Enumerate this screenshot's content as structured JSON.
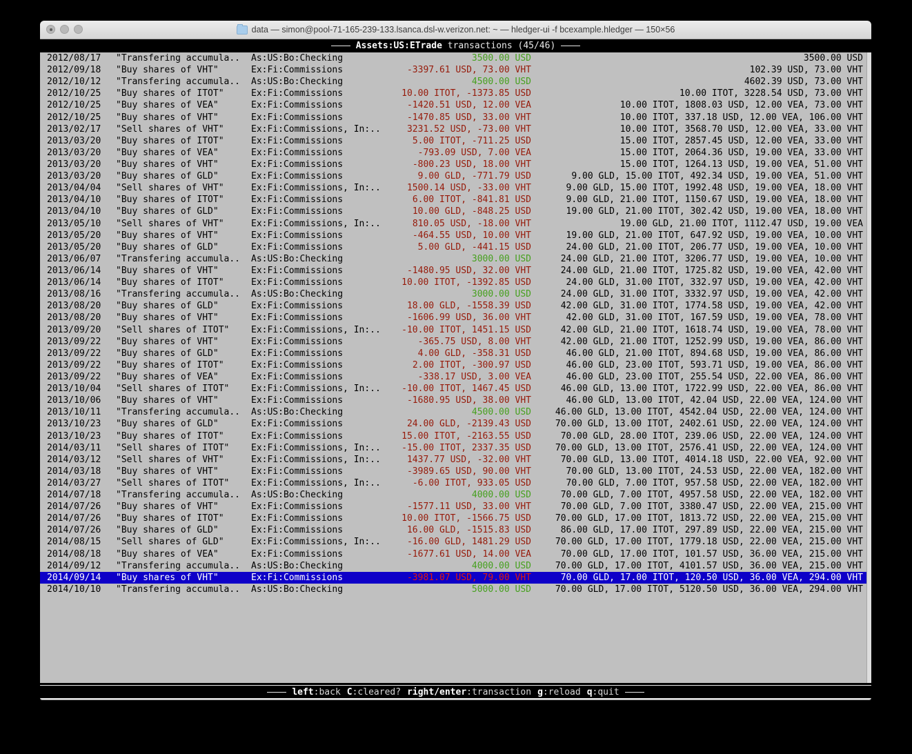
{
  "window": {
    "title": "data — simon@pool-71-165-239-133.lsanca.dsl-w.verizon.net: ~ — hledger-ui -f bcexample.hledger — 150×56"
  },
  "header": {
    "account": "Assets:US:ETrade",
    "rest": " transactions (45/46)"
  },
  "footer": {
    "hints": [
      {
        "key": "left",
        "desc": ":back"
      },
      {
        "key": "C",
        "desc": ":cleared?"
      },
      {
        "key": "right/enter",
        "desc": ":transaction"
      },
      {
        "key": "g",
        "desc": ":reload"
      },
      {
        "key": "q",
        "desc": ":quit"
      }
    ]
  },
  "colors": {
    "red": "#961a0a",
    "green": "#46a01e",
    "selection": "#0e00c8",
    "selection_red": "#e3170a",
    "terminal_bg": "#c0c0c0",
    "bar_bg": "#000000"
  },
  "transactions": [
    {
      "date": "2012/08/17",
      "description": "\"Transfering accumula..",
      "accounts": "As:US:Bo:Checking",
      "amount": "3500.00 USD",
      "amount_color": "green",
      "balance": "3500.00 USD",
      "selected": false
    },
    {
      "date": "2012/09/18",
      "description": "\"Buy shares of VHT\"",
      "accounts": "Ex:Fi:Commissions",
      "amount": "-3397.61 USD, 73.00 VHT",
      "amount_color": "red",
      "balance": "102.39 USD, 73.00 VHT",
      "selected": false
    },
    {
      "date": "2012/10/12",
      "description": "\"Transfering accumula..",
      "accounts": "As:US:Bo:Checking",
      "amount": "4500.00 USD",
      "amount_color": "green",
      "balance": "4602.39 USD, 73.00 VHT",
      "selected": false
    },
    {
      "date": "2012/10/25",
      "description": "\"Buy shares of ITOT\"",
      "accounts": "Ex:Fi:Commissions",
      "amount": "10.00 ITOT, -1373.85 USD",
      "amount_color": "red",
      "balance": "10.00 ITOT, 3228.54 USD, 73.00 VHT",
      "selected": false
    },
    {
      "date": "2012/10/25",
      "description": "\"Buy shares of VEA\"",
      "accounts": "Ex:Fi:Commissions",
      "amount": "-1420.51 USD, 12.00 VEA",
      "amount_color": "red",
      "balance": "10.00 ITOT, 1808.03 USD, 12.00 VEA, 73.00 VHT",
      "selected": false
    },
    {
      "date": "2012/10/25",
      "description": "\"Buy shares of VHT\"",
      "accounts": "Ex:Fi:Commissions",
      "amount": "-1470.85 USD, 33.00 VHT",
      "amount_color": "red",
      "balance": "10.00 ITOT, 337.18 USD, 12.00 VEA, 106.00 VHT",
      "selected": false
    },
    {
      "date": "2013/02/17",
      "description": "\"Sell shares of VHT\"",
      "accounts": "Ex:Fi:Commissions, In:..",
      "amount": "3231.52 USD, -73.00 VHT",
      "amount_color": "red",
      "balance": "10.00 ITOT, 3568.70 USD, 12.00 VEA, 33.00 VHT",
      "selected": false
    },
    {
      "date": "2013/03/20",
      "description": "\"Buy shares of ITOT\"",
      "accounts": "Ex:Fi:Commissions",
      "amount": "5.00 ITOT, -711.25 USD",
      "amount_color": "red",
      "balance": "15.00 ITOT, 2857.45 USD, 12.00 VEA, 33.00 VHT",
      "selected": false
    },
    {
      "date": "2013/03/20",
      "description": "\"Buy shares of VEA\"",
      "accounts": "Ex:Fi:Commissions",
      "amount": "-793.09 USD, 7.00 VEA",
      "amount_color": "red",
      "balance": "15.00 ITOT, 2064.36 USD, 19.00 VEA, 33.00 VHT",
      "selected": false
    },
    {
      "date": "2013/03/20",
      "description": "\"Buy shares of VHT\"",
      "accounts": "Ex:Fi:Commissions",
      "amount": "-800.23 USD, 18.00 VHT",
      "amount_color": "red",
      "balance": "15.00 ITOT, 1264.13 USD, 19.00 VEA, 51.00 VHT",
      "selected": false
    },
    {
      "date": "2013/03/20",
      "description": "\"Buy shares of GLD\"",
      "accounts": "Ex:Fi:Commissions",
      "amount": "9.00 GLD, -771.79 USD",
      "amount_color": "red",
      "balance": "9.00 GLD, 15.00 ITOT, 492.34 USD, 19.00 VEA, 51.00 VHT",
      "selected": false
    },
    {
      "date": "2013/04/04",
      "description": "\"Sell shares of VHT\"",
      "accounts": "Ex:Fi:Commissions, In:..",
      "amount": "1500.14 USD, -33.00 VHT",
      "amount_color": "red",
      "balance": "9.00 GLD, 15.00 ITOT, 1992.48 USD, 19.00 VEA, 18.00 VHT",
      "selected": false
    },
    {
      "date": "2013/04/10",
      "description": "\"Buy shares of ITOT\"",
      "accounts": "Ex:Fi:Commissions",
      "amount": "6.00 ITOT, -841.81 USD",
      "amount_color": "red",
      "balance": "9.00 GLD, 21.00 ITOT, 1150.67 USD, 19.00 VEA, 18.00 VHT",
      "selected": false
    },
    {
      "date": "2013/04/10",
      "description": "\"Buy shares of GLD\"",
      "accounts": "Ex:Fi:Commissions",
      "amount": "10.00 GLD, -848.25 USD",
      "amount_color": "red",
      "balance": "19.00 GLD, 21.00 ITOT, 302.42 USD, 19.00 VEA, 18.00 VHT",
      "selected": false
    },
    {
      "date": "2013/05/10",
      "description": "\"Sell shares of VHT\"",
      "accounts": "Ex:Fi:Commissions, In:..",
      "amount": "810.05 USD, -18.00 VHT",
      "amount_color": "red",
      "balance": "19.00 GLD, 21.00 ITOT, 1112.47 USD, 19.00 VEA",
      "selected": false
    },
    {
      "date": "2013/05/20",
      "description": "\"Buy shares of VHT\"",
      "accounts": "Ex:Fi:Commissions",
      "amount": "-464.55 USD, 10.00 VHT",
      "amount_color": "red",
      "balance": "19.00 GLD, 21.00 ITOT, 647.92 USD, 19.00 VEA, 10.00 VHT",
      "selected": false
    },
    {
      "date": "2013/05/20",
      "description": "\"Buy shares of GLD\"",
      "accounts": "Ex:Fi:Commissions",
      "amount": "5.00 GLD, -441.15 USD",
      "amount_color": "red",
      "balance": "24.00 GLD, 21.00 ITOT, 206.77 USD, 19.00 VEA, 10.00 VHT",
      "selected": false
    },
    {
      "date": "2013/06/07",
      "description": "\"Transfering accumula..",
      "accounts": "As:US:Bo:Checking",
      "amount": "3000.00 USD",
      "amount_color": "green",
      "balance": "24.00 GLD, 21.00 ITOT, 3206.77 USD, 19.00 VEA, 10.00 VHT",
      "selected": false
    },
    {
      "date": "2013/06/14",
      "description": "\"Buy shares of VHT\"",
      "accounts": "Ex:Fi:Commissions",
      "amount": "-1480.95 USD, 32.00 VHT",
      "amount_color": "red",
      "balance": "24.00 GLD, 21.00 ITOT, 1725.82 USD, 19.00 VEA, 42.00 VHT",
      "selected": false
    },
    {
      "date": "2013/06/14",
      "description": "\"Buy shares of ITOT\"",
      "accounts": "Ex:Fi:Commissions",
      "amount": "10.00 ITOT, -1392.85 USD",
      "amount_color": "red",
      "balance": "24.00 GLD, 31.00 ITOT, 332.97 USD, 19.00 VEA, 42.00 VHT",
      "selected": false
    },
    {
      "date": "2013/08/16",
      "description": "\"Transfering accumula..",
      "accounts": "As:US:Bo:Checking",
      "amount": "3000.00 USD",
      "amount_color": "green",
      "balance": "24.00 GLD, 31.00 ITOT, 3332.97 USD, 19.00 VEA, 42.00 VHT",
      "selected": false
    },
    {
      "date": "2013/08/20",
      "description": "\"Buy shares of GLD\"",
      "accounts": "Ex:Fi:Commissions",
      "amount": "18.00 GLD, -1558.39 USD",
      "amount_color": "red",
      "balance": "42.00 GLD, 31.00 ITOT, 1774.58 USD, 19.00 VEA, 42.00 VHT",
      "selected": false
    },
    {
      "date": "2013/08/20",
      "description": "\"Buy shares of VHT\"",
      "accounts": "Ex:Fi:Commissions",
      "amount": "-1606.99 USD, 36.00 VHT",
      "amount_color": "red",
      "balance": "42.00 GLD, 31.00 ITOT, 167.59 USD, 19.00 VEA, 78.00 VHT",
      "selected": false
    },
    {
      "date": "2013/09/20",
      "description": "\"Sell shares of ITOT\"",
      "accounts": "Ex:Fi:Commissions, In:..",
      "amount": "-10.00 ITOT, 1451.15 USD",
      "amount_color": "red",
      "balance": "42.00 GLD, 21.00 ITOT, 1618.74 USD, 19.00 VEA, 78.00 VHT",
      "selected": false
    },
    {
      "date": "2013/09/22",
      "description": "\"Buy shares of VHT\"",
      "accounts": "Ex:Fi:Commissions",
      "amount": "-365.75 USD, 8.00 VHT",
      "amount_color": "red",
      "balance": "42.00 GLD, 21.00 ITOT, 1252.99 USD, 19.00 VEA, 86.00 VHT",
      "selected": false
    },
    {
      "date": "2013/09/22",
      "description": "\"Buy shares of GLD\"",
      "accounts": "Ex:Fi:Commissions",
      "amount": "4.00 GLD, -358.31 USD",
      "amount_color": "red",
      "balance": "46.00 GLD, 21.00 ITOT, 894.68 USD, 19.00 VEA, 86.00 VHT",
      "selected": false
    },
    {
      "date": "2013/09/22",
      "description": "\"Buy shares of ITOT\"",
      "accounts": "Ex:Fi:Commissions",
      "amount": "2.00 ITOT, -300.97 USD",
      "amount_color": "red",
      "balance": "46.00 GLD, 23.00 ITOT, 593.71 USD, 19.00 VEA, 86.00 VHT",
      "selected": false
    },
    {
      "date": "2013/09/22",
      "description": "\"Buy shares of VEA\"",
      "accounts": "Ex:Fi:Commissions",
      "amount": "-338.17 USD, 3.00 VEA",
      "amount_color": "red",
      "balance": "46.00 GLD, 23.00 ITOT, 255.54 USD, 22.00 VEA, 86.00 VHT",
      "selected": false
    },
    {
      "date": "2013/10/04",
      "description": "\"Sell shares of ITOT\"",
      "accounts": "Ex:Fi:Commissions, In:..",
      "amount": "-10.00 ITOT, 1467.45 USD",
      "amount_color": "red",
      "balance": "46.00 GLD, 13.00 ITOT, 1722.99 USD, 22.00 VEA, 86.00 VHT",
      "selected": false
    },
    {
      "date": "2013/10/06",
      "description": "\"Buy shares of VHT\"",
      "accounts": "Ex:Fi:Commissions",
      "amount": "-1680.95 USD, 38.00 VHT",
      "amount_color": "red",
      "balance": "46.00 GLD, 13.00 ITOT, 42.04 USD, 22.00 VEA, 124.00 VHT",
      "selected": false
    },
    {
      "date": "2013/10/11",
      "description": "\"Transfering accumula..",
      "accounts": "As:US:Bo:Checking",
      "amount": "4500.00 USD",
      "amount_color": "green",
      "balance": "46.00 GLD, 13.00 ITOT, 4542.04 USD, 22.00 VEA, 124.00 VHT",
      "selected": false
    },
    {
      "date": "2013/10/23",
      "description": "\"Buy shares of GLD\"",
      "accounts": "Ex:Fi:Commissions",
      "amount": "24.00 GLD, -2139.43 USD",
      "amount_color": "red",
      "balance": "70.00 GLD, 13.00 ITOT, 2402.61 USD, 22.00 VEA, 124.00 VHT",
      "selected": false
    },
    {
      "date": "2013/10/23",
      "description": "\"Buy shares of ITOT\"",
      "accounts": "Ex:Fi:Commissions",
      "amount": "15.00 ITOT, -2163.55 USD",
      "amount_color": "red",
      "balance": "70.00 GLD, 28.00 ITOT, 239.06 USD, 22.00 VEA, 124.00 VHT",
      "selected": false
    },
    {
      "date": "2014/03/11",
      "description": "\"Sell shares of ITOT\"",
      "accounts": "Ex:Fi:Commissions, In:..",
      "amount": "-15.00 ITOT, 2337.35 USD",
      "amount_color": "red",
      "balance": "70.00 GLD, 13.00 ITOT, 2576.41 USD, 22.00 VEA, 124.00 VHT",
      "selected": false
    },
    {
      "date": "2014/03/12",
      "description": "\"Sell shares of VHT\"",
      "accounts": "Ex:Fi:Commissions, In:..",
      "amount": "1437.77 USD, -32.00 VHT",
      "amount_color": "red",
      "balance": "70.00 GLD, 13.00 ITOT, 4014.18 USD, 22.00 VEA, 92.00 VHT",
      "selected": false
    },
    {
      "date": "2014/03/18",
      "description": "\"Buy shares of VHT\"",
      "accounts": "Ex:Fi:Commissions",
      "amount": "-3989.65 USD, 90.00 VHT",
      "amount_color": "red",
      "balance": "70.00 GLD, 13.00 ITOT, 24.53 USD, 22.00 VEA, 182.00 VHT",
      "selected": false
    },
    {
      "date": "2014/03/27",
      "description": "\"Sell shares of ITOT\"",
      "accounts": "Ex:Fi:Commissions, In:..",
      "amount": "-6.00 ITOT, 933.05 USD",
      "amount_color": "red",
      "balance": "70.00 GLD, 7.00 ITOT, 957.58 USD, 22.00 VEA, 182.00 VHT",
      "selected": false
    },
    {
      "date": "2014/07/18",
      "description": "\"Transfering accumula..",
      "accounts": "As:US:Bo:Checking",
      "amount": "4000.00 USD",
      "amount_color": "green",
      "balance": "70.00 GLD, 7.00 ITOT, 4957.58 USD, 22.00 VEA, 182.00 VHT",
      "selected": false
    },
    {
      "date": "2014/07/26",
      "description": "\"Buy shares of VHT\"",
      "accounts": "Ex:Fi:Commissions",
      "amount": "-1577.11 USD, 33.00 VHT",
      "amount_color": "red",
      "balance": "70.00 GLD, 7.00 ITOT, 3380.47 USD, 22.00 VEA, 215.00 VHT",
      "selected": false
    },
    {
      "date": "2014/07/26",
      "description": "\"Buy shares of ITOT\"",
      "accounts": "Ex:Fi:Commissions",
      "amount": "10.00 ITOT, -1566.75 USD",
      "amount_color": "red",
      "balance": "70.00 GLD, 17.00 ITOT, 1813.72 USD, 22.00 VEA, 215.00 VHT",
      "selected": false
    },
    {
      "date": "2014/07/26",
      "description": "\"Buy shares of GLD\"",
      "accounts": "Ex:Fi:Commissions",
      "amount": "16.00 GLD, -1515.83 USD",
      "amount_color": "red",
      "balance": "86.00 GLD, 17.00 ITOT, 297.89 USD, 22.00 VEA, 215.00 VHT",
      "selected": false
    },
    {
      "date": "2014/08/15",
      "description": "\"Sell shares of GLD\"",
      "accounts": "Ex:Fi:Commissions, In:..",
      "amount": "-16.00 GLD, 1481.29 USD",
      "amount_color": "red",
      "balance": "70.00 GLD, 17.00 ITOT, 1779.18 USD, 22.00 VEA, 215.00 VHT",
      "selected": false
    },
    {
      "date": "2014/08/18",
      "description": "\"Buy shares of VEA\"",
      "accounts": "Ex:Fi:Commissions",
      "amount": "-1677.61 USD, 14.00 VEA",
      "amount_color": "red",
      "balance": "70.00 GLD, 17.00 ITOT, 101.57 USD, 36.00 VEA, 215.00 VHT",
      "selected": false
    },
    {
      "date": "2014/09/12",
      "description": "\"Transfering accumula..",
      "accounts": "As:US:Bo:Checking",
      "amount": "4000.00 USD",
      "amount_color": "green",
      "balance": "70.00 GLD, 17.00 ITOT, 4101.57 USD, 36.00 VEA, 215.00 VHT",
      "selected": false
    },
    {
      "date": "2014/09/14",
      "description": "\"Buy shares of VHT\"",
      "accounts": "Ex:Fi:Commissions",
      "amount": "-3981.07 USD, 79.00 VHT",
      "amount_color": "red",
      "balance": "70.00 GLD, 17.00 ITOT, 120.50 USD, 36.00 VEA, 294.00 VHT",
      "selected": true
    },
    {
      "date": "2014/10/10",
      "description": "\"Transfering accumula..",
      "accounts": "As:US:Bo:Checking",
      "amount": "5000.00 USD",
      "amount_color": "green",
      "balance": "70.00 GLD, 17.00 ITOT, 5120.50 USD, 36.00 VEA, 294.00 VHT",
      "selected": false
    }
  ]
}
